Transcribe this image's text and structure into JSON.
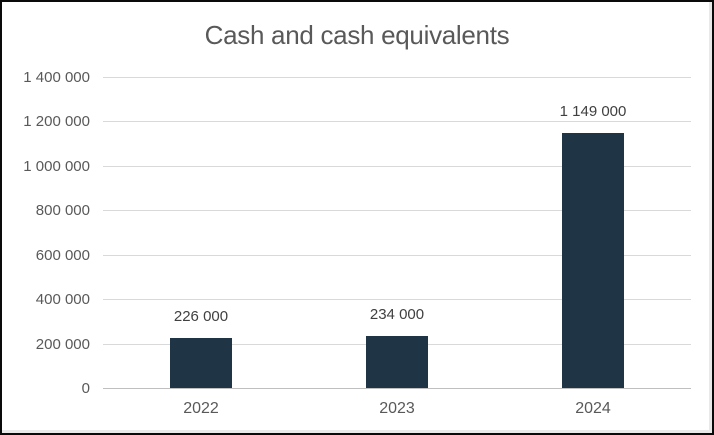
{
  "chart_data": {
    "type": "bar",
    "title": "Cash and cash equivalents",
    "categories": [
      "2022",
      "2023",
      "2024"
    ],
    "values": [
      226000,
      234000,
      1149000
    ],
    "data_labels": [
      "226 000",
      "234 000",
      "1 149 000"
    ],
    "y_ticks": [
      0,
      200000,
      400000,
      600000,
      800000,
      1000000,
      1200000,
      1400000
    ],
    "y_tick_labels": [
      "0",
      "200 000",
      "400 000",
      "600 000",
      "800 000",
      "1 000 000",
      "1 200 000",
      "1 400 000"
    ],
    "ylim": [
      0,
      1400000
    ],
    "xlabel": "",
    "ylabel": "",
    "grid": true,
    "legend": false,
    "colors": {
      "bar": "#1f3546",
      "gridline": "#d9d9d9",
      "axis_line": "#bfbfbf",
      "title_text": "#595959",
      "axis_text": "#595959",
      "data_label_text": "#404040",
      "background": "#ffffff",
      "frame_border": "#0a0a0a"
    }
  }
}
